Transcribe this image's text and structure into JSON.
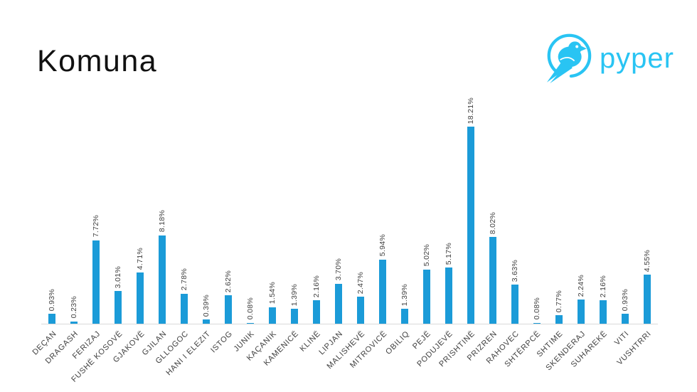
{
  "page": {
    "title": "Komuna"
  },
  "logo": {
    "brand": "pyper",
    "color": "#29c4f3"
  },
  "chart_data": {
    "type": "bar",
    "title": "Komuna",
    "xlabel": "",
    "ylabel": "",
    "ylim": [
      0,
      18.21
    ],
    "grid": false,
    "legend": false,
    "value_label_rotation": -90,
    "category_label_rotation": -45,
    "bar_color": "#1b9bd8",
    "label_color": "#404040",
    "axis_line_color": "#d9d9d9",
    "categories": [
      "DEÇAN",
      "DRAGASH",
      "FERIZAJ",
      "FUSHË KOSOVË",
      "GJAKOVË",
      "GJILAN",
      "GLLOGOC",
      "HANI I ELEZIT",
      "ISTOG",
      "JUNIK",
      "KAÇANIK",
      "KAMENICË",
      "KLINË",
      "LIPJAN",
      "MALISHEVË",
      "MITROVICË",
      "OBILIQ",
      "PEJË",
      "PODUJEVË",
      "PRISHTINË",
      "PRIZREN",
      "RAHOVEC",
      "SHTËRPCË",
      "SHTIME",
      "SKENDERAJ",
      "SUHAREKË",
      "VITI",
      "VUSHTRRI"
    ],
    "values": [
      0.93,
      0.23,
      7.72,
      3.01,
      4.71,
      8.18,
      2.78,
      0.39,
      2.62,
      0.08,
      1.54,
      1.39,
      2.16,
      3.7,
      2.47,
      5.94,
      1.39,
      5.02,
      5.17,
      18.21,
      8.02,
      3.63,
      0.08,
      0.77,
      2.24,
      2.16,
      0.93,
      4.55
    ],
    "labels": [
      "0.93%",
      "0.23%",
      "7.72%",
      "3.01%",
      "4.71%",
      "8.18%",
      "2.78%",
      "0.39%",
      "2.62%",
      "0.08%",
      "1.54%",
      "1.39%",
      "2.16%",
      "3.70%",
      "2.47%",
      "5.94%",
      "1.39%",
      "5.02%",
      "5.17%",
      "18.21%",
      "8.02%",
      "3.63%",
      "0.08%",
      "0.77%",
      "2.24%",
      "2.16%",
      "0.93%",
      "4.55%"
    ]
  }
}
